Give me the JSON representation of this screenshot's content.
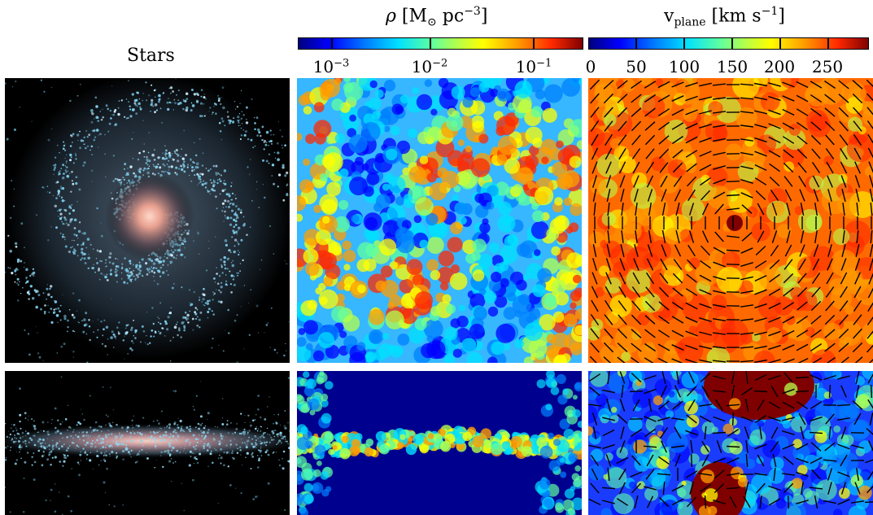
{
  "columns": {
    "stars": {
      "title": "Stars"
    },
    "density": {
      "symbol": "ρ",
      "unit_open": " [M",
      "unit_sun": "⊙",
      "unit_mid": " pc",
      "unit_exp": "−3",
      "unit_close": "]",
      "ticks": [
        {
          "base": "10",
          "exp": "−3"
        },
        {
          "base": "10",
          "exp": "−2"
        },
        {
          "base": "10",
          "exp": "−1"
        }
      ]
    },
    "velocity": {
      "symbol": "v",
      "subscript": "plane",
      "unit_open": " [km s",
      "unit_exp": "−1",
      "unit_close": "]",
      "ticks": [
        "0",
        "50",
        "100",
        "150",
        "200",
        "250"
      ]
    }
  },
  "colormap": {
    "name": "jet",
    "stops": [
      "#00007f",
      "#0000ff",
      "#0080ff",
      "#00e0ff",
      "#5fff9f",
      "#b5ff49",
      "#ffff00",
      "#ff9d00",
      "#ff2a00",
      "#7f0000"
    ]
  },
  "panels": [
    {
      "name": "stars-face-on",
      "view": "face-on"
    },
    {
      "name": "density-face-on",
      "view": "face-on"
    },
    {
      "name": "velocity-face-on",
      "view": "face-on"
    },
    {
      "name": "stars-edge-on",
      "view": "edge-on"
    },
    {
      "name": "density-edge-on",
      "view": "edge-on"
    },
    {
      "name": "velocity-edge-on",
      "view": "edge-on"
    }
  ]
}
